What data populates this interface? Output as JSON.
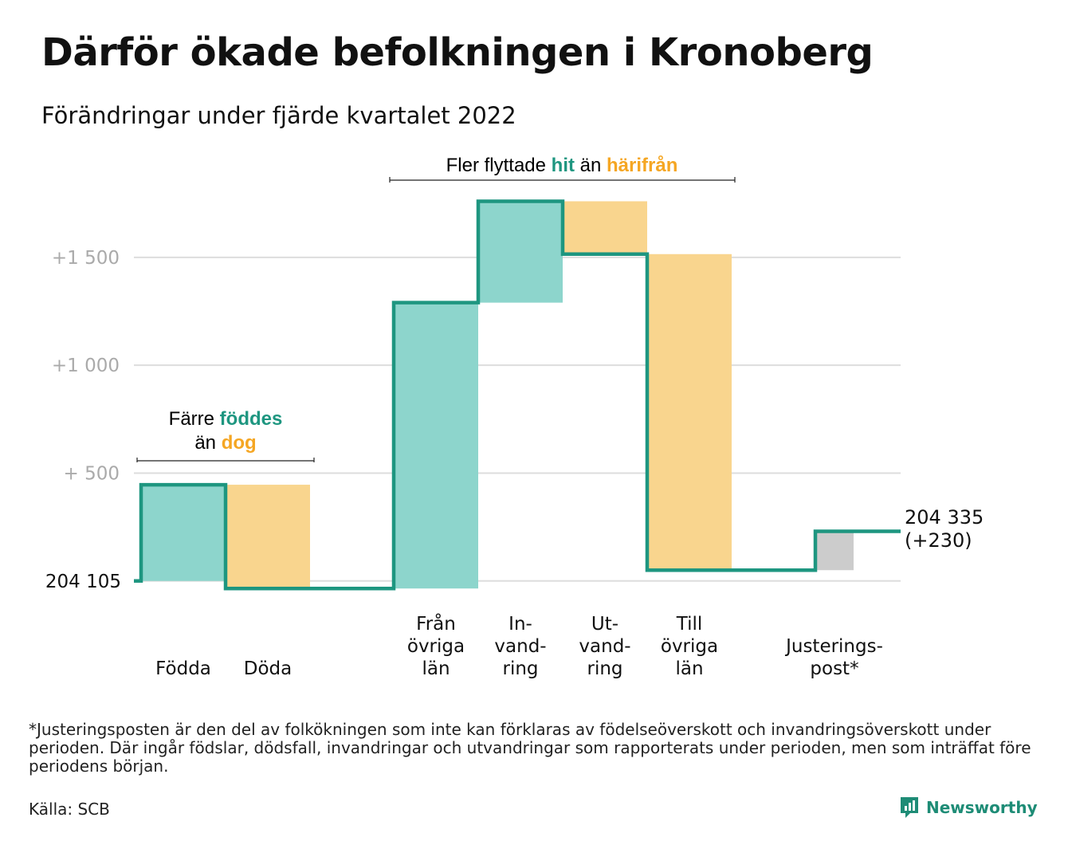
{
  "title": "Därför ökade befolkningen i Kronoberg",
  "subtitle": "Förändringar under fjärde kvartalet 2022",
  "colors": {
    "increase": "#8dd5cc",
    "decrease": "#f9d58e",
    "adjustment": "#cccccc",
    "line": "#1e9680",
    "accent_teal": "#1e9680",
    "accent_orange": "#f5a623",
    "grid": "#dddddd",
    "tick": "#aaaaaa"
  },
  "annotations": {
    "births": {
      "pre": "Färre ",
      "hi1": "föddes",
      "mid": "än ",
      "hi2": "dog"
    },
    "migration": {
      "pre": "Fler flyttade ",
      "hi1": "hit",
      "mid": " än ",
      "hi2": "härifrån"
    }
  },
  "chart_data": {
    "type": "waterfall",
    "start_label": "204 105",
    "end_label": [
      "204 335",
      "(+230)"
    ],
    "ylim": [
      -60,
      1880
    ],
    "yticks": [
      {
        "value": 0,
        "label": ""
      },
      {
        "value": 500,
        "label": "+ 500"
      },
      {
        "value": 1000,
        "label": "+1 000"
      },
      {
        "value": 1500,
        "label": "+1 500"
      }
    ],
    "categories": [
      {
        "label": [
          "Födda"
        ],
        "from": 0,
        "to": 446,
        "kind": "increase"
      },
      {
        "label": [
          "Döda"
        ],
        "from": 446,
        "to": -35,
        "kind": "decrease"
      },
      {
        "label": [
          "Från",
          "övriga",
          "län"
        ],
        "from": -35,
        "to": 1290,
        "kind": "increase"
      },
      {
        "label": [
          "In-",
          "vand-",
          "ring"
        ],
        "from": 1290,
        "to": 1760,
        "kind": "increase"
      },
      {
        "label": [
          "Ut-",
          "vand-",
          "ring"
        ],
        "from": 1760,
        "to": 1515,
        "kind": "decrease"
      },
      {
        "label": [
          "Till",
          "övriga",
          "län"
        ],
        "from": 1515,
        "to": 50,
        "kind": "decrease"
      },
      {
        "label": [
          "Justerings-",
          "post*"
        ],
        "from": 50,
        "to": 230,
        "kind": "adjustment"
      }
    ],
    "total_change": 230
  },
  "footnote": "*Justeringsposten är den del av folkökningen som inte kan förklaras av födelseöverskott och invandringsöverskott under perioden. Där ingår födslar, dödsfall, invandringar och utvandringar som rapporterats under perioden, men som inträffat före periodens början.",
  "source": "Källa: SCB",
  "brand": "Newsworthy"
}
